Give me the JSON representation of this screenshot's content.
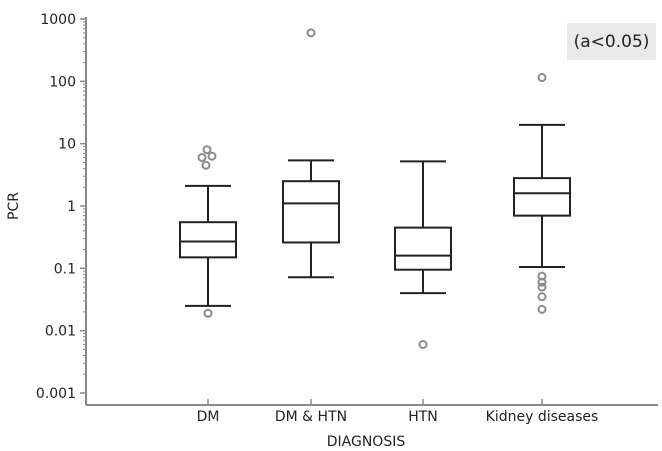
{
  "chart_data": {
    "type": "box",
    "title": "",
    "xlabel": "DIAGNOSIS",
    "ylabel": "PCR",
    "yscale": "log",
    "ylim": [
      0.001,
      1000
    ],
    "yticks": [
      0.001,
      0.01,
      0.1,
      1,
      10,
      100,
      1000
    ],
    "ytick_labels": [
      "0.001",
      "0.01",
      "0.1",
      "1",
      "10",
      "100",
      "1000"
    ],
    "grid": false,
    "annotation": "(a<0.05)",
    "categories": [
      "DM",
      "DM & HTN",
      "HTN",
      "Kidney diseases"
    ],
    "boxes": [
      {
        "category": "DM",
        "whisker_low": 0.025,
        "q1": 0.15,
        "median": 0.27,
        "q3": 0.55,
        "whisker_high": 2.1,
        "outliers": [
          0.019,
          4.5,
          6.0,
          6.3,
          8.0
        ]
      },
      {
        "category": "DM & HTN",
        "whisker_low": 0.072,
        "q1": 0.26,
        "median": 1.1,
        "q3": 2.5,
        "whisker_high": 5.4,
        "outliers": [
          600
        ]
      },
      {
        "category": "HTN",
        "whisker_low": 0.04,
        "q1": 0.095,
        "median": 0.16,
        "q3": 0.45,
        "whisker_high": 5.2,
        "outliers": [
          0.006
        ]
      },
      {
        "category": "Kidney diseases",
        "whisker_low": 0.105,
        "q1": 0.7,
        "median": 1.6,
        "q3": 2.8,
        "whisker_high": 20,
        "outliers": [
          0.022,
          0.035,
          0.05,
          0.06,
          0.075,
          115
        ]
      }
    ],
    "colors": {
      "box": "#222222",
      "outlier": "#8c8c8c",
      "axis": "#888888"
    }
  }
}
